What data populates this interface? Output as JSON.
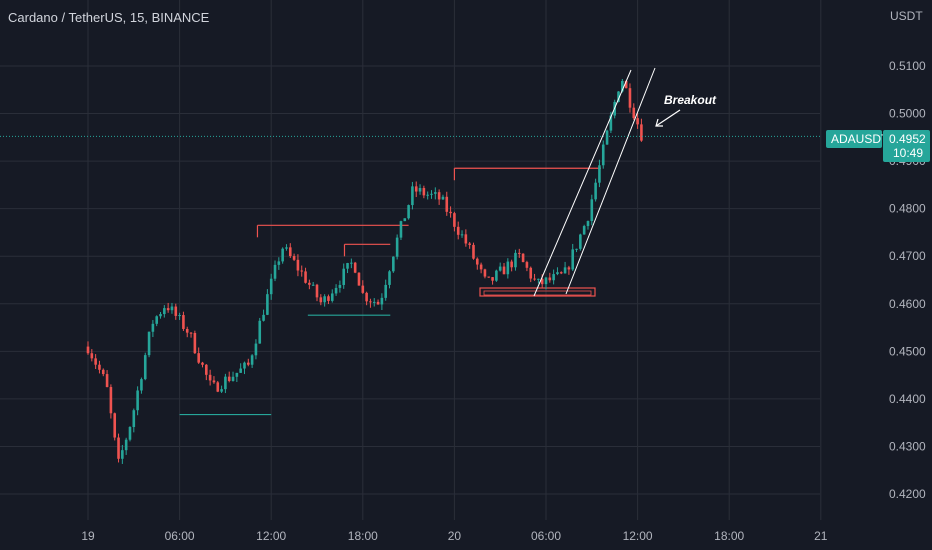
{
  "header": {
    "title": "Cardano / TetherUS, 15, BINANCE",
    "currency": "USDT"
  },
  "price_tag": {
    "symbol": "ADAUSDT",
    "price": "0.4952",
    "countdown": "10:49"
  },
  "annotation": {
    "text": "Breakout"
  },
  "colors": {
    "background": "#161a25",
    "up": "#26a69a",
    "down": "#ef5350",
    "grid": "#2a2e39",
    "drawing": "#ffffff"
  },
  "chart_data": {
    "type": "candlestick",
    "title": "Cardano / TetherUS, 15, BINANCE",
    "ylim": [
      0.4175,
      0.52
    ],
    "y_ticks": [
      "0.5100",
      "0.5000",
      "0.4900",
      "0.4800",
      "0.4700",
      "0.4600",
      "0.4500",
      "0.4400",
      "0.4300",
      "0.4200"
    ],
    "x_ticks": [
      "19",
      "06:00",
      "12:00",
      "18:00",
      "20",
      "06:00",
      "12:00",
      "18:00",
      "21"
    ],
    "current_price": 0.4952,
    "support_lines": [
      {
        "from_tick": 1,
        "to_tick": 2.0,
        "price": 0.4367
      },
      {
        "from_tick": 2.4,
        "to_tick": 3.3,
        "price": 0.4576
      }
    ],
    "resistance_lines": [
      {
        "from_tick": 1.85,
        "to_tick": 3.5,
        "price": 0.4765
      },
      {
        "from_tick": 2.8,
        "to_tick": 3.3,
        "price": 0.4725
      },
      {
        "from_tick": 4.0,
        "to_tick": 5.6,
        "price": 0.4885
      }
    ],
    "anchors": [
      [
        0.0,
        0.451
      ],
      [
        0.2,
        0.443
      ],
      [
        0.33,
        0.426
      ],
      [
        0.48,
        0.436
      ],
      [
        0.7,
        0.456
      ],
      [
        0.85,
        0.46
      ],
      [
        1.1,
        0.454
      ],
      [
        1.35,
        0.442
      ],
      [
        1.5,
        0.444
      ],
      [
        1.75,
        0.447
      ],
      [
        1.92,
        0.459
      ],
      [
        2.12,
        0.472
      ],
      [
        2.35,
        0.466
      ],
      [
        2.55,
        0.46
      ],
      [
        2.9,
        0.469
      ],
      [
        3.0,
        0.462
      ],
      [
        3.18,
        0.46
      ],
      [
        3.35,
        0.472
      ],
      [
        3.55,
        0.484
      ],
      [
        3.85,
        0.482
      ],
      [
        4.15,
        0.472
      ],
      [
        4.35,
        0.464
      ],
      [
        4.7,
        0.47
      ],
      [
        4.9,
        0.464
      ],
      [
        5.2,
        0.466
      ],
      [
        5.45,
        0.478
      ],
      [
        5.82,
        0.508
      ],
      [
        6.0,
        0.498
      ],
      [
        6.05,
        0.4952
      ]
    ]
  }
}
